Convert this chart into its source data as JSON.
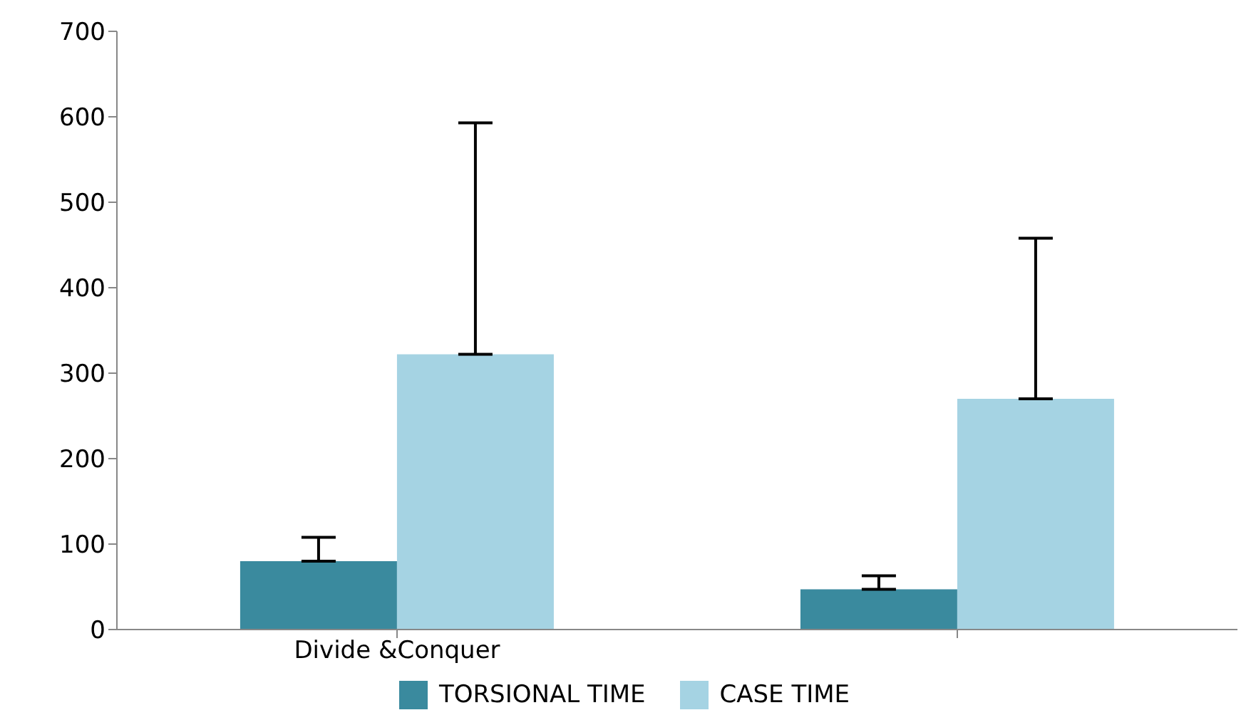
{
  "chart_data": {
    "type": "bar",
    "categories": [
      "Divide &Conquer",
      null
    ],
    "series": [
      {
        "name": "TORSIONAL TIME",
        "color": "#3a8a9e",
        "values": [
          80,
          47
        ],
        "errors": [
          [
            80,
            108
          ],
          [
            47,
            63
          ]
        ]
      },
      {
        "name": "CASE TIME",
        "color": "#a5d3e3",
        "values": [
          322,
          270
        ],
        "errors": [
          [
            322,
            593
          ],
          [
            270,
            458
          ]
        ]
      }
    ],
    "ylim": [
      0,
      700
    ],
    "yticks": [
      0,
      100,
      200,
      300,
      400,
      500,
      600,
      700
    ],
    "grid": false,
    "legend": "bottom"
  }
}
